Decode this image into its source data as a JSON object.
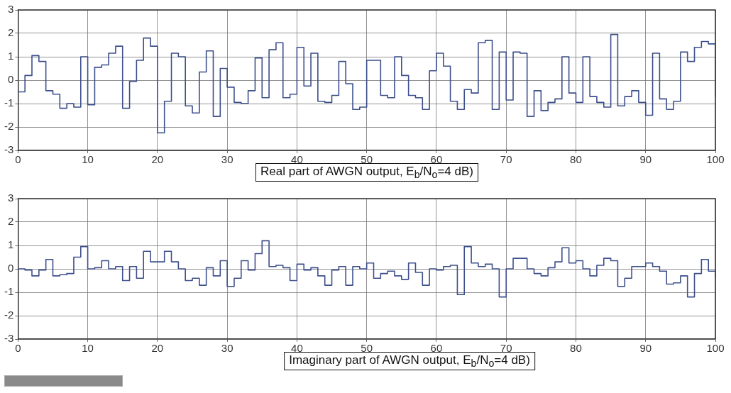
{
  "chart_data": [
    {
      "type": "step",
      "xlabel": "Real part of AWGN output, E$_{b}$/N$_{o}$=4 dB)",
      "grid": true,
      "xlim": [
        0,
        100
      ],
      "xticks": [
        0,
        10,
        20,
        30,
        40,
        50,
        60,
        70,
        80,
        90,
        100
      ],
      "ylim": [
        -3,
        3
      ],
      "yticks": [
        -3,
        -2,
        -1,
        0,
        1,
        2,
        3
      ],
      "marker": "none",
      "x": [
        0,
        1,
        2,
        3,
        4,
        5,
        6,
        7,
        8,
        9,
        10,
        11,
        12,
        13,
        14,
        15,
        16,
        17,
        18,
        19,
        20,
        21,
        22,
        23,
        24,
        25,
        26,
        27,
        28,
        29,
        30,
        31,
        32,
        33,
        34,
        35,
        36,
        37,
        38,
        39,
        40,
        41,
        42,
        43,
        44,
        45,
        46,
        47,
        48,
        49,
        50,
        51,
        52,
        53,
        54,
        55,
        56,
        57,
        58,
        59,
        60,
        61,
        62,
        63,
        64,
        65,
        66,
        67,
        68,
        69,
        70,
        71,
        72,
        73,
        74,
        75,
        76,
        77,
        78,
        79,
        80,
        81,
        82,
        83,
        84,
        85,
        86,
        87,
        88,
        89,
        90,
        91,
        92,
        93,
        94,
        95,
        96,
        97,
        98,
        99,
        100
      ],
      "series": [
        {
          "color": "#3d4f8c",
          "values": [
            -0.5,
            0.2,
            1.05,
            0.8,
            -0.45,
            -0.6,
            -1.2,
            -1.0,
            -1.15,
            1.0,
            -1.05,
            0.55,
            0.65,
            1.15,
            1.45,
            -1.2,
            -0.05,
            0.85,
            1.8,
            1.45,
            -2.25,
            -0.9,
            1.15,
            1.0,
            -1.1,
            -1.4,
            0.35,
            1.25,
            -1.55,
            0.5,
            -0.3,
            -0.95,
            -1.0,
            -0.45,
            0.95,
            -0.75,
            1.3,
            1.6,
            -0.75,
            -0.6,
            1.4,
            -0.25,
            1.15,
            -0.9,
            -0.95,
            -0.65,
            0.8,
            -0.15,
            -1.25,
            -1.15,
            0.85,
            0.85,
            -0.65,
            -0.75,
            1.0,
            0.2,
            -0.65,
            -0.75,
            -1.25,
            0.4,
            1.15,
            0.6,
            -0.9,
            -1.25,
            -0.4,
            -0.55,
            1.6,
            1.7,
            -1.25,
            1.2,
            -0.85,
            1.2,
            1.15,
            -1.55,
            -0.45,
            -1.3,
            -0.95,
            -0.8,
            1.0,
            -0.55,
            -0.95,
            1.0,
            -0.7,
            -0.95,
            -1.15,
            1.95,
            -1.1,
            -0.7,
            -0.45,
            -0.95,
            -1.5,
            1.15,
            -0.8,
            -1.25,
            -0.9,
            1.2,
            0.8,
            1.4,
            1.65,
            1.55,
            -0.7
          ]
        }
      ]
    },
    {
      "type": "step",
      "xlabel": "Imaginary part of AWGN output, E$_{b}$/N$_{o}$=4 dB)",
      "grid": true,
      "xlim": [
        0,
        100
      ],
      "xticks": [
        0,
        10,
        20,
        30,
        40,
        50,
        60,
        70,
        80,
        90,
        100
      ],
      "ylim": [
        -3,
        3
      ],
      "yticks": [
        -3,
        -2,
        -1,
        0,
        1,
        2,
        3
      ],
      "marker": "none",
      "x": [
        0,
        1,
        2,
        3,
        4,
        5,
        6,
        7,
        8,
        9,
        10,
        11,
        12,
        13,
        14,
        15,
        16,
        17,
        18,
        19,
        20,
        21,
        22,
        23,
        24,
        25,
        26,
        27,
        28,
        29,
        30,
        31,
        32,
        33,
        34,
        35,
        36,
        37,
        38,
        39,
        40,
        41,
        42,
        43,
        44,
        45,
        46,
        47,
        48,
        49,
        50,
        51,
        52,
        53,
        54,
        55,
        56,
        57,
        58,
        59,
        60,
        61,
        62,
        63,
        64,
        65,
        66,
        67,
        68,
        69,
        70,
        71,
        72,
        73,
        74,
        75,
        76,
        77,
        78,
        79,
        80,
        81,
        82,
        83,
        84,
        85,
        86,
        87,
        88,
        89,
        90,
        91,
        92,
        93,
        94,
        95,
        96,
        97,
        98,
        99,
        100
      ],
      "series": [
        {
          "color": "#3d4f8c",
          "values": [
            0.0,
            -0.05,
            -0.3,
            -0.05,
            0.4,
            -0.3,
            -0.25,
            -0.2,
            0.5,
            0.95,
            0.0,
            0.05,
            0.35,
            0.0,
            0.1,
            -0.5,
            0.1,
            -0.4,
            0.75,
            0.3,
            0.3,
            0.75,
            0.3,
            0.0,
            -0.5,
            -0.4,
            -0.7,
            0.05,
            -0.3,
            0.35,
            -0.75,
            -0.4,
            0.35,
            -0.05,
            0.65,
            1.2,
            0.1,
            0.15,
            0.05,
            -0.5,
            0.2,
            -0.05,
            0.05,
            -0.3,
            -0.7,
            -0.05,
            0.1,
            -0.7,
            0.1,
            0.0,
            0.25,
            -0.4,
            -0.2,
            -0.1,
            -0.3,
            -0.45,
            0.25,
            -0.15,
            -0.7,
            0.0,
            -0.05,
            0.1,
            0.15,
            -1.1,
            0.95,
            0.25,
            0.1,
            0.2,
            0.0,
            -1.2,
            0.0,
            0.45,
            0.45,
            0.0,
            -0.2,
            -0.3,
            0.05,
            0.3,
            0.9,
            0.25,
            0.35,
            0.0,
            -0.3,
            0.15,
            0.45,
            0.35,
            -0.75,
            -0.4,
            0.1,
            0.1,
            0.25,
            0.1,
            -0.1,
            -0.65,
            -0.6,
            -0.3,
            -1.2,
            -0.2,
            0.4,
            -0.1,
            -0.4
          ]
        }
      ]
    }
  ]
}
